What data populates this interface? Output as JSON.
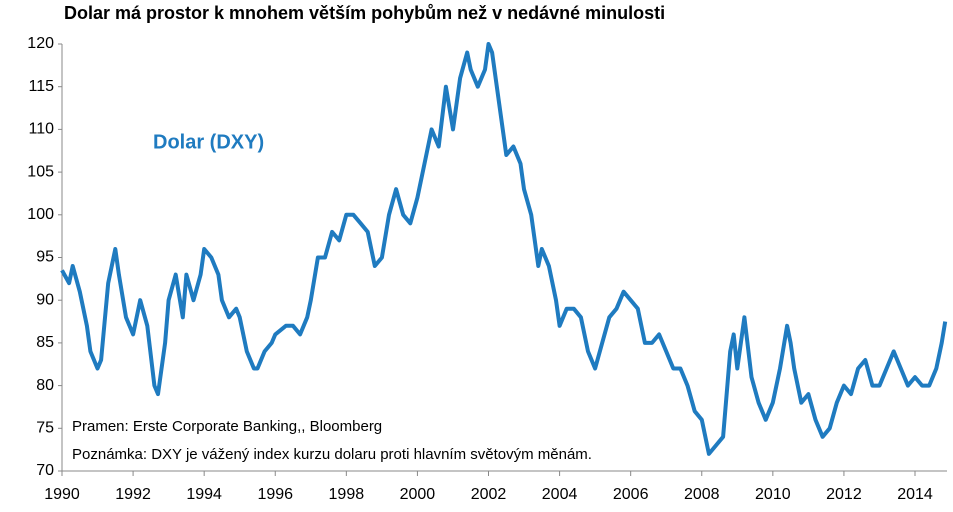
{
  "chart_data": {
    "type": "line",
    "title": "Dolar má prostor k mnohem větším pohybům než v nedávné minulosti",
    "annotations": [
      "Dolar (DXY)",
      "Pramen: Erste Corporate Banking,, Bloomberg",
      "Poznámka: DXY je vážený index kurzu dolaru proti hlavním světovým měnám."
    ],
    "x": [
      1990.0,
      1990.2,
      1990.3,
      1990.5,
      1990.7,
      1990.8,
      1991.0,
      1991.1,
      1991.3,
      1991.5,
      1991.6,
      1991.8,
      1992.0,
      1992.2,
      1992.4,
      1992.6,
      1992.7,
      1992.9,
      1993.0,
      1993.2,
      1993.4,
      1993.5,
      1993.7,
      1993.9,
      1994.0,
      1994.2,
      1994.4,
      1994.5,
      1994.7,
      1994.9,
      1995.0,
      1995.2,
      1995.4,
      1995.5,
      1995.7,
      1995.9,
      1996.0,
      1996.3,
      1996.5,
      1996.7,
      1996.9,
      1997.0,
      1997.2,
      1997.4,
      1997.6,
      1997.8,
      1998.0,
      1998.2,
      1998.4,
      1998.6,
      1998.8,
      1999.0,
      1999.2,
      1999.4,
      1999.6,
      1999.8,
      2000.0,
      2000.2,
      2000.4,
      2000.6,
      2000.8,
      2001.0,
      2001.2,
      2001.4,
      2001.5,
      2001.7,
      2001.9,
      2002.0,
      2002.1,
      2002.3,
      2002.5,
      2002.7,
      2002.9,
      2003.0,
      2003.2,
      2003.4,
      2003.5,
      2003.7,
      2003.9,
      2004.0,
      2004.2,
      2004.4,
      2004.6,
      2004.8,
      2005.0,
      2005.2,
      2005.4,
      2005.6,
      2005.8,
      2006.0,
      2006.2,
      2006.4,
      2006.6,
      2006.8,
      2007.0,
      2007.2,
      2007.4,
      2007.6,
      2007.8,
      2008.0,
      2008.2,
      2008.4,
      2008.6,
      2008.8,
      2008.9,
      2009.0,
      2009.2,
      2009.4,
      2009.6,
      2009.8,
      2010.0,
      2010.2,
      2010.4,
      2010.5,
      2010.6,
      2010.8,
      2011.0,
      2011.2,
      2011.4,
      2011.6,
      2011.8,
      2012.0,
      2012.2,
      2012.4,
      2012.6,
      2012.8,
      2013.0,
      2013.2,
      2013.4,
      2013.6,
      2013.8,
      2014.0,
      2014.2,
      2014.4,
      2014.6,
      2014.75,
      2014.85
    ],
    "series": [
      {
        "name": "Dolar (DXY)",
        "color": "#1f7bc0",
        "values": [
          93.5,
          92,
          94,
          91,
          87,
          84,
          82,
          83,
          92,
          96,
          93,
          88,
          86,
          90,
          87,
          80,
          79,
          85,
          90,
          93,
          88,
          93,
          90,
          93,
          96,
          95,
          93,
          90,
          88,
          89,
          88,
          84,
          82,
          82,
          84,
          85,
          86,
          87,
          87,
          86,
          88,
          90,
          95,
          95,
          98,
          97,
          100,
          100,
          99,
          98,
          94,
          95,
          100,
          103,
          100,
          99,
          102,
          106,
          110,
          108,
          115,
          110,
          116,
          119,
          117,
          115,
          117,
          120,
          119,
          113,
          107,
          108,
          106,
          103,
          100,
          94,
          96,
          94,
          90,
          87,
          89,
          89,
          88,
          84,
          82,
          85,
          88,
          89,
          91,
          90,
          89,
          85,
          85,
          86,
          84,
          82,
          82,
          80,
          77,
          76,
          72,
          73,
          74,
          84,
          86,
          82,
          88,
          81,
          78,
          76,
          78,
          82,
          87,
          85,
          82,
          78,
          79,
          76,
          74,
          75,
          78,
          80,
          79,
          82,
          83,
          80,
          80,
          82,
          84,
          82,
          80,
          81,
          80,
          80,
          82,
          85,
          87.5
        ]
      }
    ],
    "xlim": [
      1990,
      2014.9
    ],
    "ylim": [
      70,
      120
    ],
    "xticks": [
      1990,
      1992,
      1994,
      1996,
      1998,
      2000,
      2002,
      2004,
      2006,
      2008,
      2010,
      2012,
      2014
    ],
    "yticks": [
      70,
      75,
      80,
      85,
      90,
      95,
      100,
      105,
      110,
      115,
      120
    ]
  }
}
